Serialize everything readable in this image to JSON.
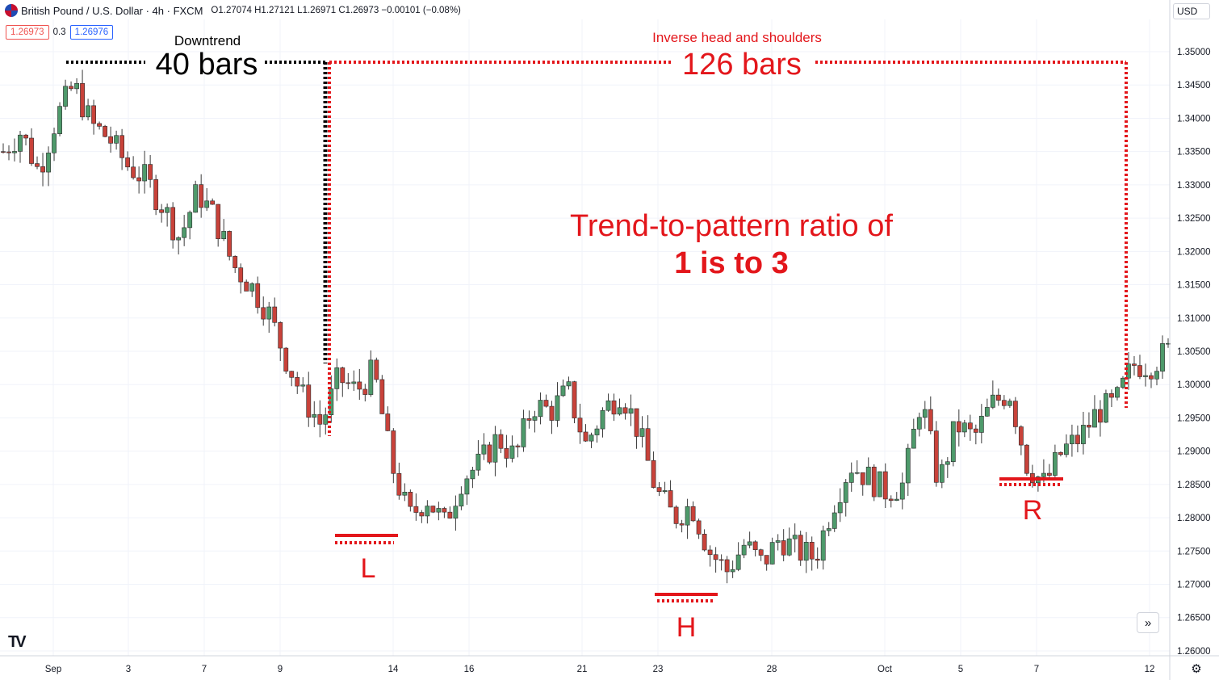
{
  "header": {
    "symbol_title": "British Pound / U.S. Dollar · 4h · FXCM",
    "ohlc": "O1.27074 H1.27121 L1.26971 C1.26973 −0.00101 (−0.08%)",
    "sell_price": "1.26973",
    "spread": "0.3",
    "buy_price": "1.26976",
    "currency": "USD",
    "flag_icon": "gbp-usd-flag-icon"
  },
  "colors": {
    "up": "#4e9a6b",
    "down": "#c8423a",
    "annotation_red": "#e3161b",
    "annotation_black": "#000000",
    "grid": "#f0f3fa"
  },
  "chart_data": {
    "type": "candlestick",
    "title": "British Pound / U.S. Dollar · 4h · FXCM",
    "xlabel": "",
    "ylabel": "",
    "ylim": [
      1.26,
      1.3525
    ],
    "y_ticks": [
      "1.35000",
      "1.34500",
      "1.34000",
      "1.33500",
      "1.33000",
      "1.32500",
      "1.32000",
      "1.31500",
      "1.31000",
      "1.30500",
      "1.30000",
      "1.29500",
      "1.29000",
      "1.28500",
      "1.28000",
      "1.27500",
      "1.27000",
      "1.26500",
      "1.26000"
    ],
    "x_ticks": [
      "Sep",
      "3",
      "7",
      "9",
      "14",
      "16",
      "21",
      "23",
      "28",
      "Oct",
      "5",
      "7",
      "12"
    ],
    "close_path": [
      1.335,
      1.338,
      1.332,
      1.34,
      1.345,
      1.339,
      1.337,
      1.333,
      1.331,
      1.327,
      1.322,
      1.329,
      1.325,
      1.318,
      1.315,
      1.311,
      1.304,
      1.298,
      1.294,
      1.301,
      1.299,
      1.302,
      1.288,
      1.28,
      1.283,
      1.279,
      1.286,
      1.288,
      1.292,
      1.289,
      1.297,
      1.296,
      1.299,
      1.291,
      1.296,
      1.299,
      1.293,
      1.284,
      1.28,
      1.282,
      1.275,
      1.272,
      1.276,
      1.273,
      1.277,
      1.275,
      1.274,
      1.282,
      1.288,
      1.286,
      1.284,
      1.285,
      1.298,
      1.285,
      1.294,
      1.292,
      1.297,
      1.299,
      1.288,
      1.285,
      1.29,
      1.292,
      1.296,
      1.297,
      1.303,
      1.303,
      1.305
    ],
    "close_path_note": "closing prices read off the chart at the date ticks, first to last bar",
    "annotations": [
      {
        "text": "Downtrend",
        "color": "#000000"
      },
      {
        "text": "40 bars",
        "color": "#000000"
      },
      {
        "text": "Inverse head and shoulders",
        "color": "#e3161b"
      },
      {
        "text": "126 bars",
        "color": "#e3161b"
      },
      {
        "text": "Trend-to-pattern ratio of",
        "color": "#e3161b"
      },
      {
        "text": "1 is to 3",
        "color": "#e3161b"
      },
      {
        "text": "L",
        "color": "#e3161b"
      },
      {
        "text": "H",
        "color": "#e3161b"
      },
      {
        "text": "R",
        "color": "#e3161b"
      }
    ],
    "grid": true,
    "legend": "none"
  },
  "controls": {
    "scroll_icon": "double-chevron-right-icon",
    "scroll_glyph": "»",
    "settings_icon": "gear-icon",
    "settings_glyph": "⚙",
    "logo_text": "TV",
    "logo_icon": "tradingview-logo-icon"
  }
}
